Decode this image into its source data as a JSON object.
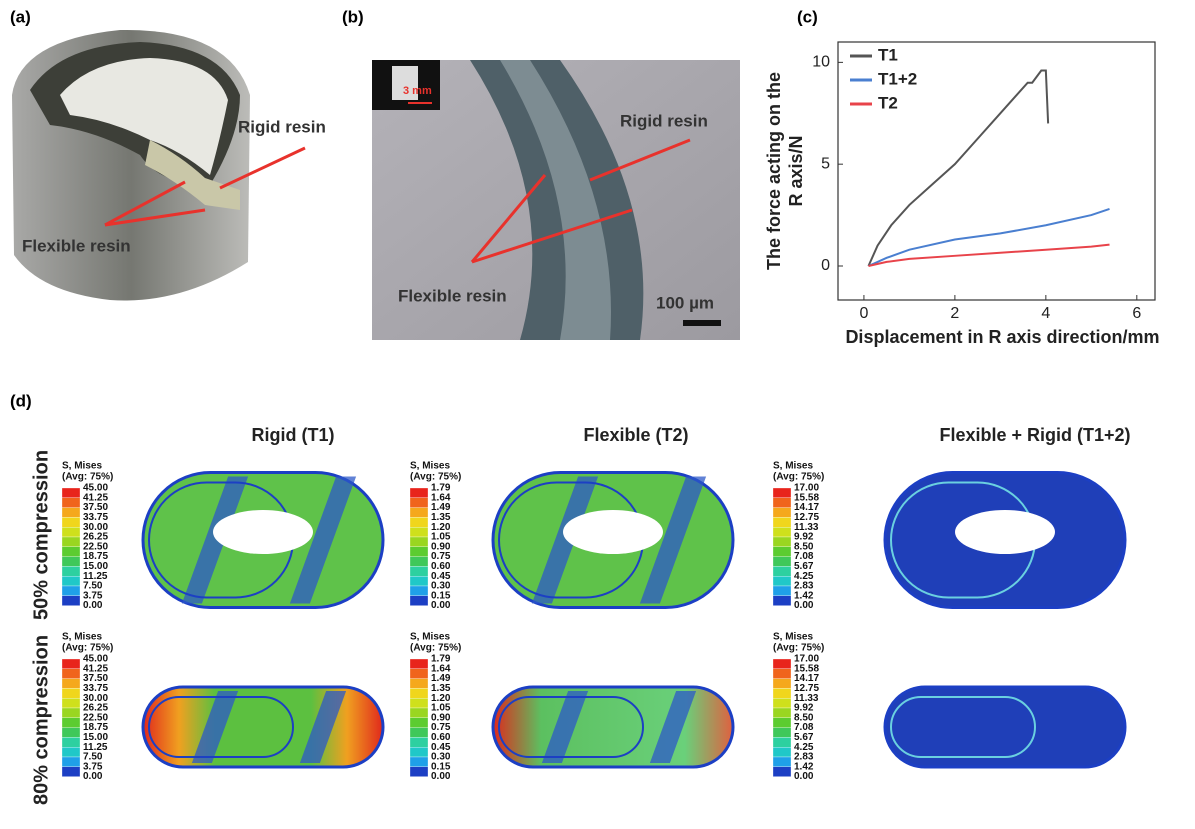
{
  "panels": {
    "a": {
      "label": "(a)",
      "rigid": "Rigid resin",
      "flexible": "Flexible resin"
    },
    "b": {
      "label": "(b)",
      "inset_scale": "3 mm",
      "rigid": "Rigid resin",
      "flexible": "Flexible resin",
      "scale": "100 µm"
    },
    "c": {
      "label": "(c)"
    },
    "d": {
      "label": "(d)",
      "rows": [
        "50% compression",
        "80% compression"
      ],
      "columns": [
        {
          "title": "Rigid (T1)",
          "legend_title": "S, Mises",
          "legend_subtitle": "(Avg: 75%)",
          "legend_values": [
            "45.00",
            "41.25",
            "37.50",
            "33.75",
            "30.00",
            "26.25",
            "22.50",
            "18.75",
            "15.00",
            "11.25",
            "7.50",
            "3.75",
            "0.00"
          ]
        },
        {
          "title": "Flexible (T2)",
          "legend_title": "S, Mises",
          "legend_subtitle": "(Avg: 75%)",
          "legend_values": [
            "1.79",
            "1.64",
            "1.49",
            "1.35",
            "1.20",
            "1.05",
            "0.90",
            "0.75",
            "0.60",
            "0.45",
            "0.30",
            "0.15",
            "0.00"
          ]
        },
        {
          "title": "Flexible + Rigid (T1+2)",
          "legend_title": "S, Mises",
          "legend_subtitle": "(Avg: 75%)",
          "legend_values": [
            "17.00",
            "15.58",
            "14.17",
            "12.75",
            "11.33",
            "9.92",
            "8.50",
            "7.08",
            "5.67",
            "4.25",
            "2.83",
            "1.42",
            "0.00"
          ]
        }
      ]
    }
  },
  "chart_data": {
    "type": "line",
    "xlabel": "Displacement in R axis direction/mm",
    "ylabel": [
      "The force acting on the",
      "R axis/N"
    ],
    "xlim": [
      -0.57,
      6.4
    ],
    "ylim": [
      -1.67,
      11
    ],
    "xticks": [
      0,
      2,
      4,
      6
    ],
    "yticks": [
      0,
      5,
      10
    ],
    "legend": "top-left",
    "series": [
      {
        "name": "T1",
        "color": "#555555",
        "x": [
          0.1,
          0.3,
          0.6,
          1,
          1.5,
          2,
          2.6,
          3.2,
          3.6,
          3.7,
          3.8,
          3.9,
          4.0,
          4.05
        ],
        "values": [
          0,
          1,
          2,
          3,
          4,
          5,
          6.5,
          8,
          9,
          9.0,
          9.3,
          9.6,
          9.6,
          7
        ]
      },
      {
        "name": "T1+2",
        "color": "#4a7fd0",
        "x": [
          0.1,
          0.5,
          1,
          2,
          3,
          4,
          5,
          5.4
        ],
        "values": [
          0,
          0.4,
          0.8,
          1.3,
          1.6,
          2.0,
          2.5,
          2.8
        ]
      },
      {
        "name": "T2",
        "color": "#e8434a",
        "x": [
          0.1,
          0.5,
          1,
          2,
          3,
          4,
          5,
          5.4
        ],
        "values": [
          0,
          0.2,
          0.35,
          0.5,
          0.65,
          0.8,
          0.95,
          1.05
        ]
      }
    ]
  }
}
